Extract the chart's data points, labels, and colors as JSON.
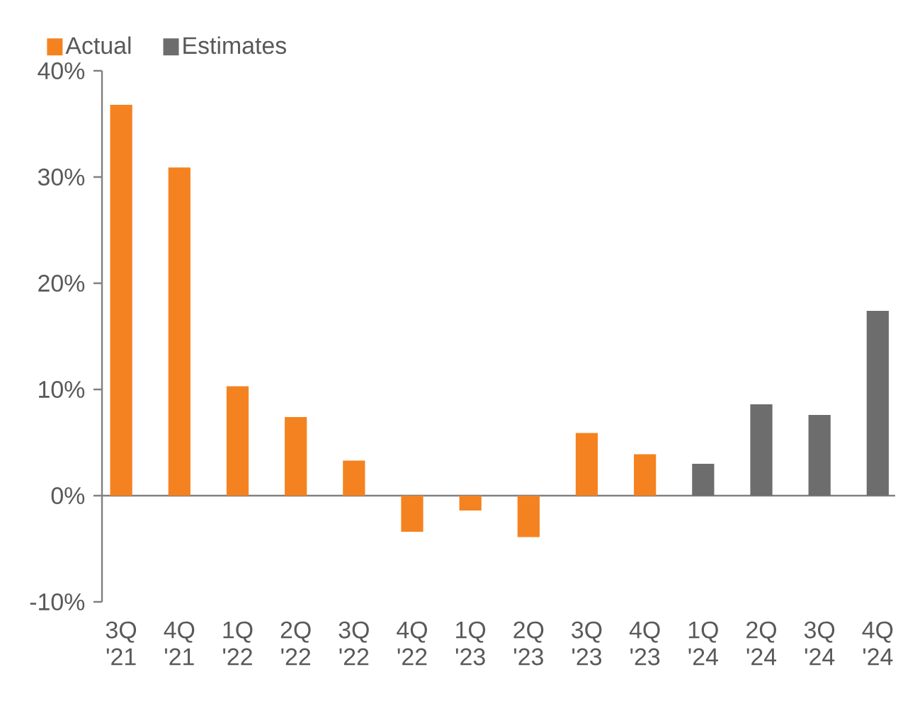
{
  "chart_data": {
    "type": "bar",
    "categories": [
      "3Q '21",
      "4Q '21",
      "1Q '22",
      "2Q '22",
      "3Q '22",
      "4Q '22",
      "1Q '23",
      "2Q '23",
      "3Q '23",
      "4Q '23",
      "1Q '24",
      "2Q '24",
      "3Q '24",
      "4Q '24"
    ],
    "series": [
      {
        "name": "Actual",
        "color": "#f58220",
        "values": [
          36.8,
          30.9,
          10.3,
          7.4,
          3.3,
          -3.4,
          -1.4,
          -3.9,
          5.9,
          3.9,
          null,
          null,
          null,
          null
        ]
      },
      {
        "name": "Estimates",
        "color": "#6d6d6d",
        "values": [
          null,
          null,
          null,
          null,
          null,
          null,
          null,
          null,
          null,
          null,
          3.0,
          8.6,
          7.6,
          17.4
        ]
      }
    ],
    "ylim": [
      -10,
      40
    ],
    "yticks": [
      {
        "value": -10,
        "label": "-10%"
      },
      {
        "value": 0,
        "label": "0%"
      },
      {
        "value": 10,
        "label": "10%"
      },
      {
        "value": 20,
        "label": "20%"
      },
      {
        "value": 30,
        "label": "30%"
      },
      {
        "value": 40,
        "label": "40%"
      }
    ],
    "legend": "top left"
  }
}
